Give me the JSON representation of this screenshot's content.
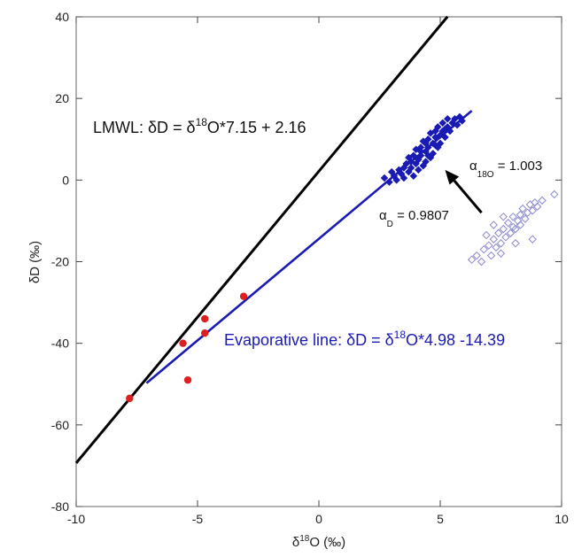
{
  "chart_data": {
    "type": "scatter",
    "xlim": [
      -10,
      10
    ],
    "ylim": [
      -80,
      40
    ],
    "x_ticks": [
      -10,
      -5,
      0,
      5,
      10
    ],
    "y_ticks": [
      -80,
      -60,
      -40,
      -20,
      0,
      20,
      40
    ],
    "xlabel": {
      "prefix": "δ",
      "sup": "18",
      "suffix": "O (‰)"
    },
    "ylabel": "δD (‰)",
    "grid": false,
    "colors": {
      "lmwl": "#000000",
      "evaporative": "#1a1ab4",
      "red_points": "#dd1f1f",
      "hollow_points": "#8a8ad0",
      "arrow": "#000000"
    },
    "lines": [
      {
        "name": "LMWL",
        "slope": 7.15,
        "intercept": 2.16,
        "x_range": [
          -10,
          5.3
        ],
        "color": "#000000"
      },
      {
        "name": "Evaporative line",
        "slope": 4.98,
        "intercept": -14.39,
        "x_range": [
          -7.1,
          6.3
        ],
        "color": "#1a1ab4"
      }
    ],
    "series": [
      {
        "marker": "red-circle",
        "points": [
          [
            -7.8,
            -53.5
          ],
          [
            -5.6,
            -40
          ],
          [
            -5.4,
            -49
          ],
          [
            -4.7,
            -34
          ],
          [
            -4.7,
            -37.5
          ],
          [
            -3.1,
            -28.5
          ]
        ]
      },
      {
        "marker": "blue-filled-diamond",
        "points": [
          [
            2.7,
            0.5
          ],
          [
            2.9,
            -0.5
          ],
          [
            3.0,
            2
          ],
          [
            3.1,
            1
          ],
          [
            3.2,
            0
          ],
          [
            3.3,
            2.5
          ],
          [
            3.4,
            1.5
          ],
          [
            3.5,
            3
          ],
          [
            3.5,
            0.5
          ],
          [
            3.6,
            4
          ],
          [
            3.7,
            2
          ],
          [
            3.7,
            5.5
          ],
          [
            3.8,
            3
          ],
          [
            3.9,
            6
          ],
          [
            3.9,
            1
          ],
          [
            4.0,
            4
          ],
          [
            4.0,
            7.5
          ],
          [
            4.1,
            5
          ],
          [
            4.1,
            2.5
          ],
          [
            4.2,
            8
          ],
          [
            4.2,
            6
          ],
          [
            4.3,
            3.5
          ],
          [
            4.3,
            9.5
          ],
          [
            4.4,
            7
          ],
          [
            4.4,
            4.5
          ],
          [
            4.5,
            10
          ],
          [
            4.5,
            8
          ],
          [
            4.6,
            5.5
          ],
          [
            4.6,
            11.5
          ],
          [
            4.7,
            9
          ],
          [
            4.7,
            6.5
          ],
          [
            4.8,
            12
          ],
          [
            4.8,
            10.5
          ],
          [
            4.9,
            8
          ],
          [
            4.9,
            13
          ],
          [
            5.0,
            11
          ],
          [
            5.0,
            9
          ],
          [
            5.1,
            14
          ],
          [
            5.1,
            12
          ],
          [
            5.2,
            10.5
          ],
          [
            5.3,
            13
          ],
          [
            5.3,
            15
          ],
          [
            5.4,
            12
          ],
          [
            5.5,
            14
          ],
          [
            5.6,
            15
          ],
          [
            5.7,
            13.5
          ],
          [
            5.8,
            15.5
          ],
          [
            5.9,
            14.5
          ],
          [
            4.2,
            7
          ],
          [
            4.5,
            6
          ],
          [
            4.8,
            8.5
          ],
          [
            5.2,
            12.5
          ],
          [
            3.8,
            4.5
          ],
          [
            4.4,
            9
          ]
        ]
      },
      {
        "marker": "hollow-diamond",
        "points": [
          [
            6.3,
            -19.5
          ],
          [
            6.5,
            -18.5
          ],
          [
            6.7,
            -20
          ],
          [
            6.8,
            -17
          ],
          [
            7.0,
            -16
          ],
          [
            7.1,
            -18.5
          ],
          [
            7.2,
            -14.5
          ],
          [
            7.3,
            -16.5
          ],
          [
            7.4,
            -13
          ],
          [
            7.5,
            -15.5
          ],
          [
            7.5,
            -18
          ],
          [
            7.6,
            -12
          ],
          [
            7.7,
            -14
          ],
          [
            7.8,
            -10.5
          ],
          [
            7.9,
            -13
          ],
          [
            8.0,
            -11.5
          ],
          [
            8.0,
            -9
          ],
          [
            8.1,
            -12
          ],
          [
            8.2,
            -10
          ],
          [
            8.3,
            -8.5
          ],
          [
            8.3,
            -11
          ],
          [
            8.4,
            -7
          ],
          [
            8.5,
            -9.5
          ],
          [
            8.6,
            -8
          ],
          [
            8.7,
            -6
          ],
          [
            8.8,
            -7.5
          ],
          [
            8.9,
            -5.5
          ],
          [
            9.0,
            -6.5
          ],
          [
            9.2,
            -5
          ],
          [
            9.7,
            -3.5
          ],
          [
            7.2,
            -11
          ],
          [
            7.6,
            -9
          ],
          [
            8.8,
            -14.5
          ],
          [
            6.9,
            -13.5
          ],
          [
            8.1,
            -15.5
          ]
        ]
      }
    ],
    "annotations": {
      "lmwl": {
        "prefix": "LMWL: δD = δ",
        "sup": "18",
        "suffix": "O*7.15 + 2.16"
      },
      "evaporative": {
        "prefix": "Evaporative line: δD = δ",
        "sup": "18",
        "suffix": "O*4.98 -14.39"
      },
      "alpha_18o": {
        "symbol": "α",
        "sub": "18O",
        "value": " = 1.003"
      },
      "alpha_d": {
        "symbol": "α",
        "sub": "D",
        "value": " = 0.9807"
      }
    },
    "arrow": {
      "from": [
        6.7,
        -8
      ],
      "to": [
        5.2,
        2.5
      ]
    }
  }
}
